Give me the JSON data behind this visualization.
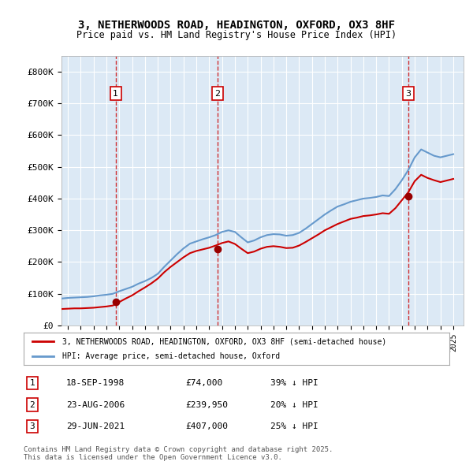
{
  "title": "3, NETHERWOODS ROAD, HEADINGTON, OXFORD, OX3 8HF",
  "subtitle": "Price paid vs. HM Land Registry's House Price Index (HPI)",
  "ylabel": "",
  "background_color": "#ffffff",
  "plot_bg_color": "#dce9f5",
  "grid_color": "#ffffff",
  "sale_color": "#cc0000",
  "hpi_color": "#6699cc",
  "sale_marker_color": "#990000",
  "sale_dates_num": [
    1998.72,
    2006.64,
    2021.49
  ],
  "sale_prices": [
    74000,
    239950,
    407000
  ],
  "sale_labels": [
    "1",
    "2",
    "3"
  ],
  "transaction_info": [
    {
      "label": "1",
      "date": "18-SEP-1998",
      "price": "£74,000",
      "change": "39% ↓ HPI"
    },
    {
      "label": "2",
      "date": "23-AUG-2006",
      "price": "£239,950",
      "change": "20% ↓ HPI"
    },
    {
      "label": "3",
      "date": "29-JUN-2021",
      "price": "£407,000",
      "change": "25% ↓ HPI"
    }
  ],
  "legend_sale": "3, NETHERWOODS ROAD, HEADINGTON, OXFORD, OX3 8HF (semi-detached house)",
  "legend_hpi": "HPI: Average price, semi-detached house, Oxford",
  "footer": "Contains HM Land Registry data © Crown copyright and database right 2025.\nThis data is licensed under the Open Government Licence v3.0.",
  "ylim": [
    0,
    850000
  ],
  "xlim_start": 1994.5,
  "xlim_end": 2025.8,
  "yticks": [
    0,
    100000,
    200000,
    300000,
    400000,
    500000,
    600000,
    700000,
    800000
  ],
  "ytick_labels": [
    "£0",
    "£100K",
    "£200K",
    "£300K",
    "£400K",
    "£500K",
    "£600K",
    "£700K",
    "£800K"
  ],
  "hpi_data": {
    "years": [
      1994.5,
      1995.0,
      1995.5,
      1996.0,
      1996.5,
      1997.0,
      1997.5,
      1998.0,
      1998.5,
      1999.0,
      1999.5,
      2000.0,
      2000.5,
      2001.0,
      2001.5,
      2002.0,
      2002.5,
      2003.0,
      2003.5,
      2004.0,
      2004.5,
      2005.0,
      2005.5,
      2006.0,
      2006.5,
      2007.0,
      2007.5,
      2008.0,
      2008.5,
      2009.0,
      2009.5,
      2010.0,
      2010.5,
      2011.0,
      2011.5,
      2012.0,
      2012.5,
      2013.0,
      2013.5,
      2014.0,
      2014.5,
      2015.0,
      2015.5,
      2016.0,
      2016.5,
      2017.0,
      2017.5,
      2018.0,
      2018.5,
      2019.0,
      2019.5,
      2020.0,
      2020.5,
      2021.0,
      2021.5,
      2022.0,
      2022.5,
      2023.0,
      2023.5,
      2024.0,
      2024.5,
      2025.0
    ],
    "values": [
      85000,
      87000,
      88000,
      89000,
      90000,
      92000,
      95000,
      97000,
      100000,
      108000,
      115000,
      122000,
      132000,
      140000,
      150000,
      163000,
      185000,
      205000,
      225000,
      243000,
      258000,
      265000,
      272000,
      278000,
      285000,
      295000,
      300000,
      295000,
      278000,
      262000,
      268000,
      278000,
      285000,
      288000,
      287000,
      283000,
      285000,
      292000,
      305000,
      320000,
      335000,
      350000,
      363000,
      375000,
      382000,
      390000,
      395000,
      400000,
      402000,
      405000,
      410000,
      408000,
      430000,
      458000,
      490000,
      530000,
      555000,
      545000,
      535000,
      530000,
      535000,
      540000
    ]
  },
  "sale_line_data": {
    "years": [
      1994.5,
      1995.0,
      1995.5,
      1996.0,
      1996.5,
      1997.0,
      1997.5,
      1998.0,
      1998.5,
      1999.0,
      1999.5,
      2000.0,
      2000.5,
      2001.0,
      2001.5,
      2002.0,
      2002.5,
      2003.0,
      2003.5,
      2004.0,
      2004.5,
      2005.0,
      2005.5,
      2006.0,
      2006.5,
      2007.0,
      2007.5,
      2008.0,
      2008.5,
      2009.0,
      2009.5,
      2010.0,
      2010.5,
      2011.0,
      2011.5,
      2012.0,
      2012.5,
      2013.0,
      2013.5,
      2014.0,
      2014.5,
      2015.0,
      2015.5,
      2016.0,
      2016.5,
      2017.0,
      2017.5,
      2018.0,
      2018.5,
      2019.0,
      2019.5,
      2020.0,
      2020.5,
      2021.0,
      2021.5,
      2022.0,
      2022.5,
      2023.0,
      2023.5,
      2024.0,
      2024.5,
      2025.0
    ],
    "values": [
      52000,
      53000,
      54000,
      54000,
      55000,
      56000,
      58000,
      60000,
      63000,
      74000,
      85000,
      95000,
      108000,
      120000,
      133000,
      148000,
      168000,
      185000,
      200000,
      215000,
      228000,
      235000,
      240000,
      245000,
      252000,
      260000,
      265000,
      257000,
      242000,
      228000,
      233000,
      242000,
      248000,
      250000,
      248000,
      244000,
      245000,
      252000,
      263000,
      275000,
      287000,
      300000,
      310000,
      320000,
      328000,
      336000,
      340000,
      345000,
      347000,
      350000,
      354000,
      352000,
      370000,
      395000,
      420000,
      455000,
      475000,
      465000,
      458000,
      452000,
      457000,
      462000
    ]
  }
}
